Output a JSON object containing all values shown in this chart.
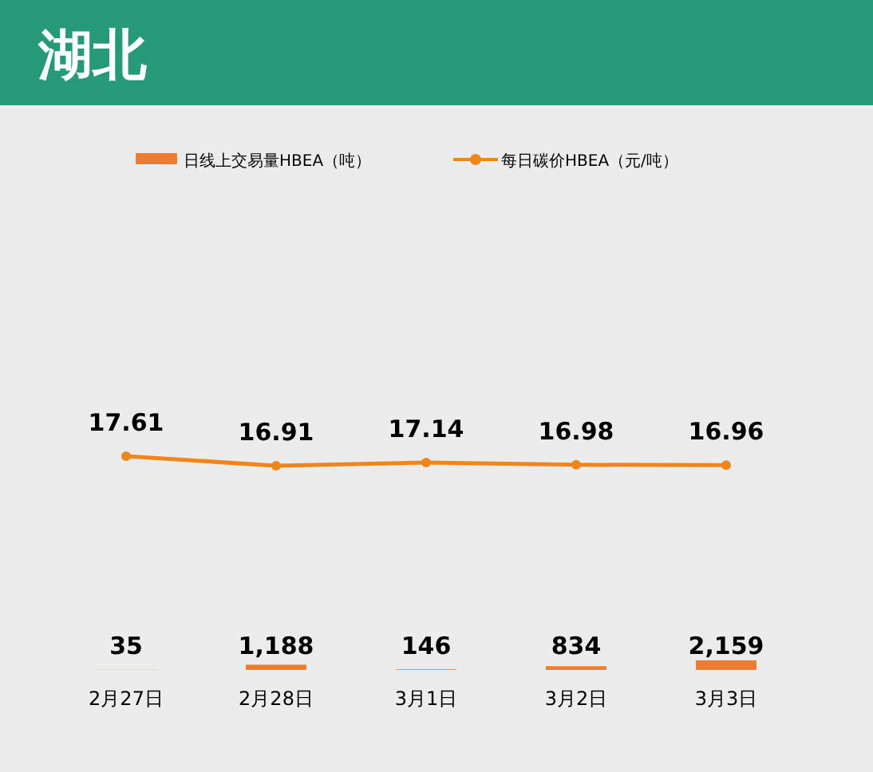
{
  "chart_data": [
    {
      "type": "line",
      "title": "湖北",
      "categories": [
        null,
        null,
        null,
        null,
        null
      ],
      "series": [
        {
          "name": "每日碳价HBEA（元/吨）",
          "color": "#f08519",
          "values": [
            17.61,
            16.91,
            17.14,
            16.98,
            16.96
          ],
          "value_labels": [
            "17.61",
            "16.91",
            "17.14",
            "16.98",
            "16.96"
          ]
        }
      ],
      "legend": "top",
      "marker": "circle"
    },
    {
      "type": "bar",
      "categories": [
        "2月27日",
        "2月28日",
        "3月1日",
        "3月2日",
        "3月3日"
      ],
      "series": [
        {
          "name": "日线上交易量HBEA（吨）",
          "color": "#ed7d31",
          "values": [
            35,
            1188,
            146,
            834,
            2159
          ],
          "value_labels": [
            "35",
            "1,188",
            "146",
            "834",
            "2,159"
          ]
        }
      ],
      "legend": "top"
    }
  ]
}
